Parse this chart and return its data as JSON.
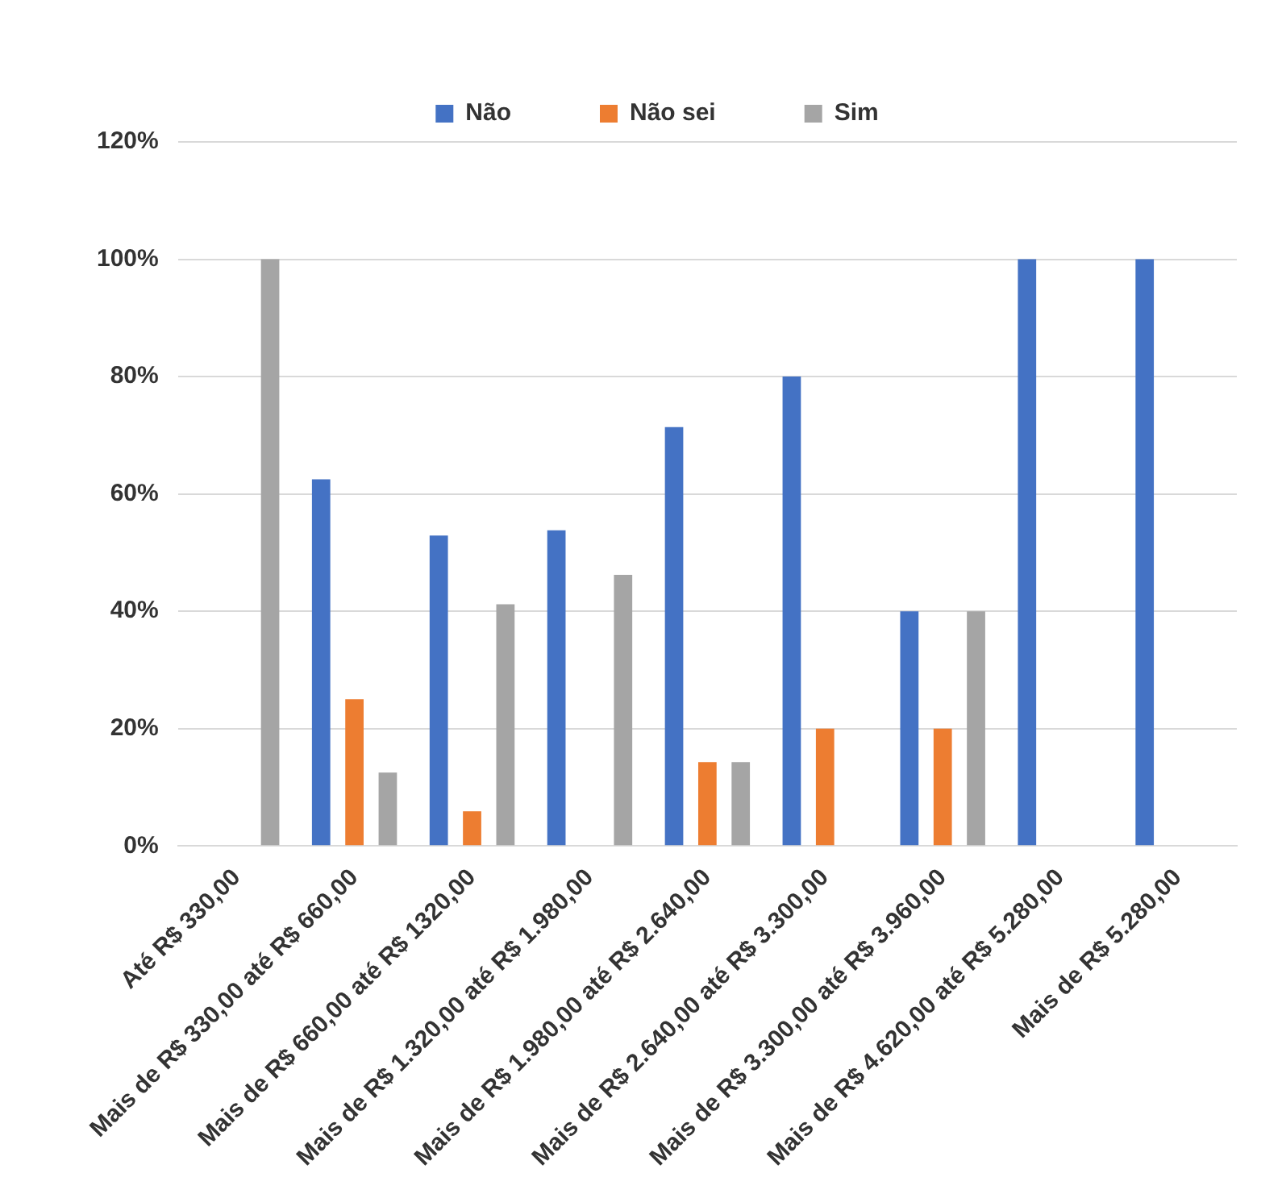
{
  "chart_data": {
    "type": "bar",
    "categories": [
      "Até R$ 330,00",
      "Mais de R$ 330,00 até R$ 660,00",
      "Mais de R$ 660,00 até R$ 1320,00",
      "Mais de R$ 1.320,00 até R$ 1.980,00",
      "Mais de R$ 1.980,00 até R$ 2.640,00",
      "Mais de R$ 2.640,00 até R$ 3.300,00",
      "Mais de R$ 3.300,00 até R$ 3.960,00",
      "Mais de R$ 4.620,00 até R$ 5.280,00",
      "Mais de R$ 5.280,00"
    ],
    "series": [
      {
        "name": "Não",
        "color": "#4472c4",
        "values": [
          null,
          62.5,
          52.9,
          53.8,
          71.4,
          80,
          40,
          100,
          100
        ]
      },
      {
        "name": "Não sei",
        "color": "#ed7d31",
        "values": [
          null,
          25,
          5.9,
          null,
          14.3,
          20,
          20,
          null,
          null
        ]
      },
      {
        "name": "Sim",
        "color": "#a5a5a5",
        "values": [
          100,
          12.5,
          41.2,
          46.2,
          14.3,
          null,
          40,
          null,
          null
        ]
      }
    ],
    "ylim": [
      0,
      120
    ],
    "yticks": [
      {
        "value": 0,
        "label": "0%"
      },
      {
        "value": 20,
        "label": "20%"
      },
      {
        "value": 40,
        "label": "40%"
      },
      {
        "value": 60,
        "label": "60%"
      },
      {
        "value": 80,
        "label": "80%"
      },
      {
        "value": 100,
        "label": "100%"
      },
      {
        "value": 120,
        "label": "120%"
      }
    ],
    "grid": "y",
    "legend": "top"
  }
}
